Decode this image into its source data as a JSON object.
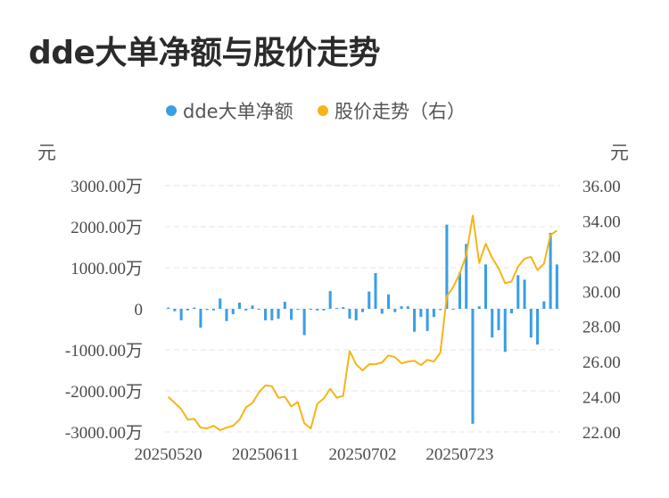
{
  "chart_data": {
    "type": "bar",
    "title": "dde大单净额与股价走势",
    "legend": [
      "dde大单净额",
      "股价走势（右）"
    ],
    "legend_position": "top-center",
    "ylabel_left": "元",
    "ylabel_right": "元",
    "left_axis": {
      "ticks": [
        "3000.00万",
        "2000.00万",
        "1000.00万",
        "0",
        "-1000.00万",
        "-2000.00万",
        "-3000.00万"
      ],
      "ylim": [
        -3000,
        3000
      ]
    },
    "right_axis": {
      "ticks": [
        "36.00",
        "34.00",
        "32.00",
        "30.00",
        "28.00",
        "26.00",
        "24.00",
        "22.00"
      ],
      "ylim": [
        22,
        36
      ]
    },
    "x_tick_labels": [
      "20250520",
      "20250611",
      "20250702",
      "20250723"
    ],
    "grid": true,
    "series": [
      {
        "name": "dde大单净额",
        "type": "bar",
        "color": "#3a9ee4",
        "values": [
          30,
          -60,
          -280,
          -40,
          30,
          -460,
          -30,
          -40,
          250,
          -300,
          -130,
          150,
          -40,
          80,
          -10,
          -280,
          -280,
          -240,
          170,
          -270,
          -20,
          -640,
          -10,
          -40,
          -40,
          430,
          20,
          40,
          -240,
          -280,
          -80,
          420,
          870,
          -120,
          350,
          -80,
          60,
          60,
          -560,
          -200,
          -540,
          -200,
          -30,
          2050,
          -20,
          880,
          1580,
          -2800,
          60,
          1080,
          -700,
          -520,
          -1050,
          -110,
          820,
          710,
          -700,
          -870,
          180,
          1850,
          1080
        ]
      },
      {
        "name": "股价走势（右）",
        "type": "line",
        "color": "#f5b517",
        "values": [
          24.0,
          23.65,
          23.3,
          22.7,
          22.75,
          22.25,
          22.2,
          22.35,
          22.1,
          22.25,
          22.35,
          22.7,
          23.4,
          23.65,
          24.25,
          24.65,
          24.6,
          23.95,
          24.0,
          23.45,
          23.7,
          22.5,
          22.2,
          23.6,
          23.9,
          24.45,
          23.95,
          24.05,
          26.6,
          25.85,
          25.5,
          25.85,
          25.85,
          25.95,
          26.35,
          26.25,
          25.9,
          26.0,
          26.05,
          25.8,
          26.1,
          26.0,
          26.5,
          29.7,
          30.25,
          31.0,
          32.05,
          34.3,
          31.6,
          32.7,
          31.9,
          31.3,
          30.45,
          30.55,
          31.4,
          31.85,
          31.95,
          31.2,
          31.55,
          33.2,
          33.45
        ]
      }
    ]
  }
}
